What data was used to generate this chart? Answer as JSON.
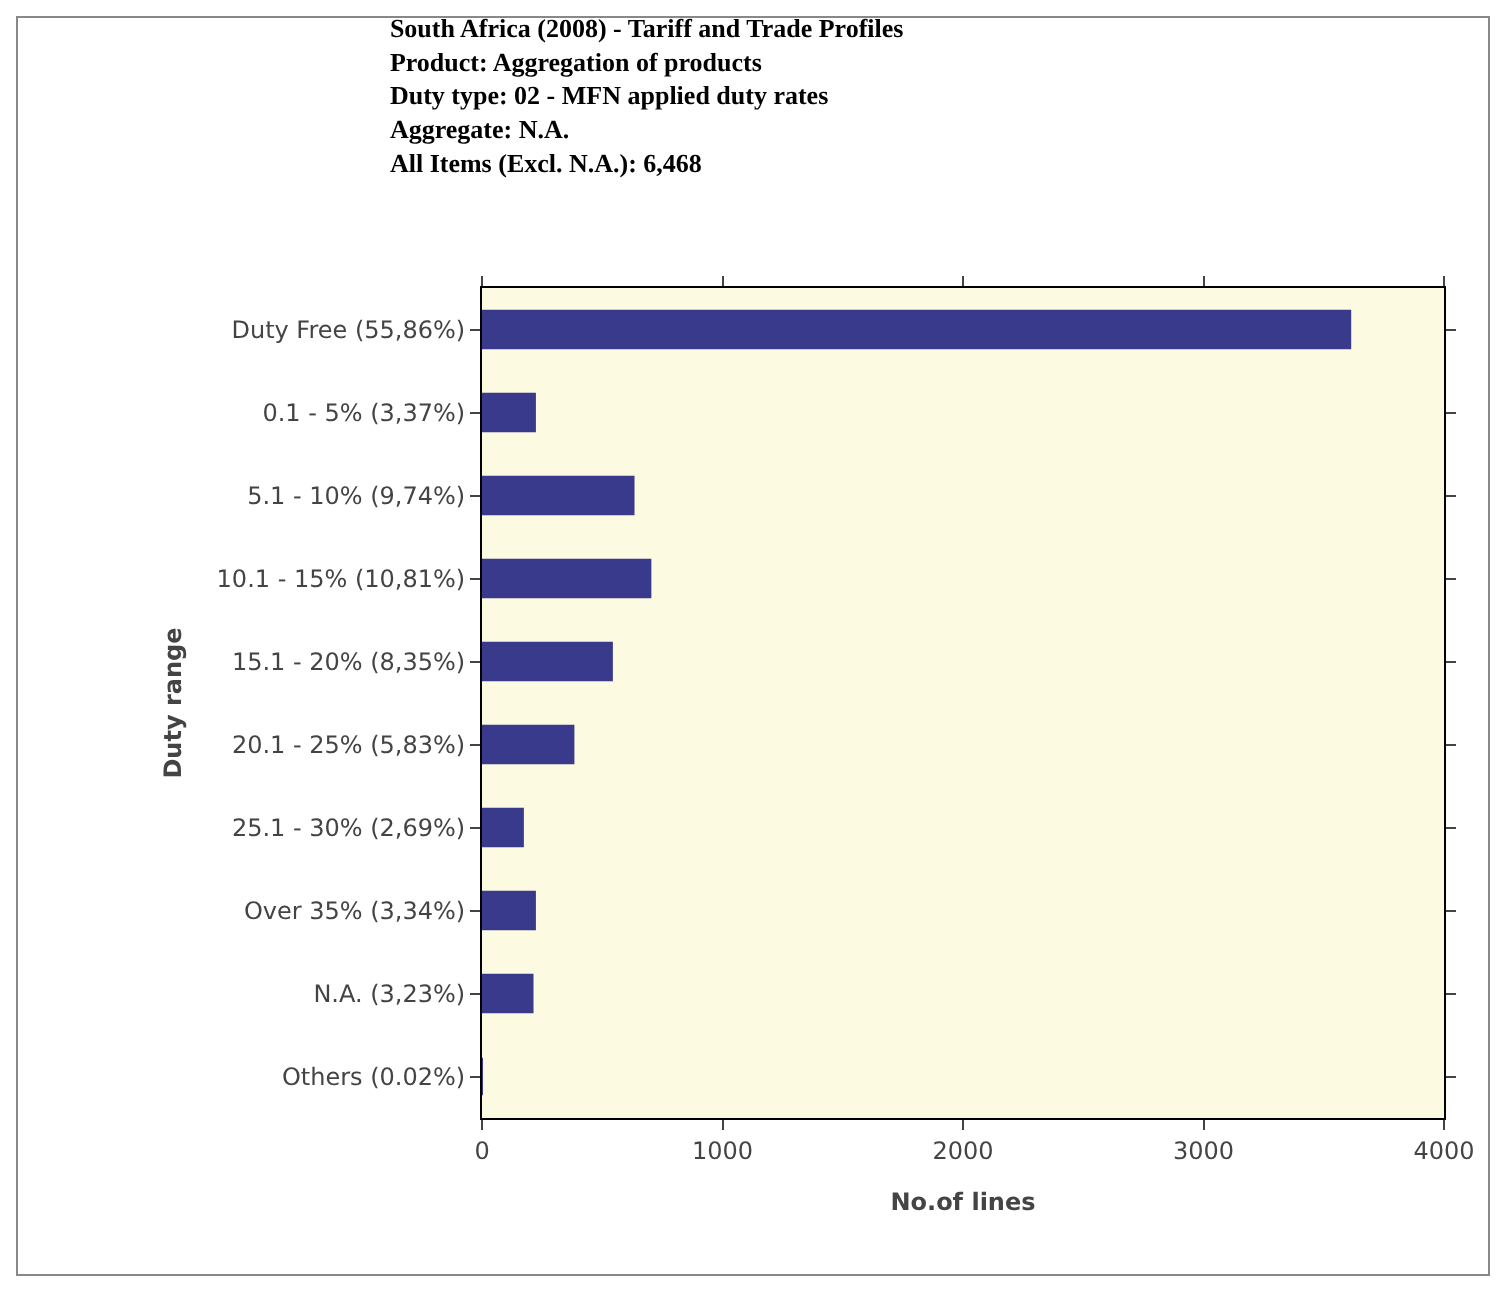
{
  "chart_data": {
    "type": "bar",
    "orientation": "horizontal",
    "title": "South Africa (2008) - Tariff and Trade Profiles",
    "subtitle": "Product: Aggregation of products\nDuty type: 02 - MFN applied duty rates\nAggregate: N.A.\nAll Items (Excl. N.A.): 6,468",
    "categories": [
      "Duty Free (55,86%)",
      "0.1 - 5% (3,37%)",
      "5.1 - 10% (9,74%)",
      "10.1 - 15% (10,81%)",
      "15.1 - 20% (8,35%)",
      "20.1 - 25% (5,83%)",
      "25.1 - 30% (2,69%)",
      "Over 35% (3,34%)",
      "N.A. (3,23%)",
      "Others (0.02%)"
    ],
    "values": [
      3610,
      220,
      630,
      700,
      540,
      380,
      170,
      220,
      210,
      0
    ],
    "color": "#3a3a8c",
    "xlim": [
      0,
      4000
    ],
    "xticks": [
      0,
      1000,
      2000,
      3000,
      4000
    ],
    "xlabel": "No.of lines",
    "ylabel": "Duty range",
    "grid": false,
    "legend": false
  }
}
